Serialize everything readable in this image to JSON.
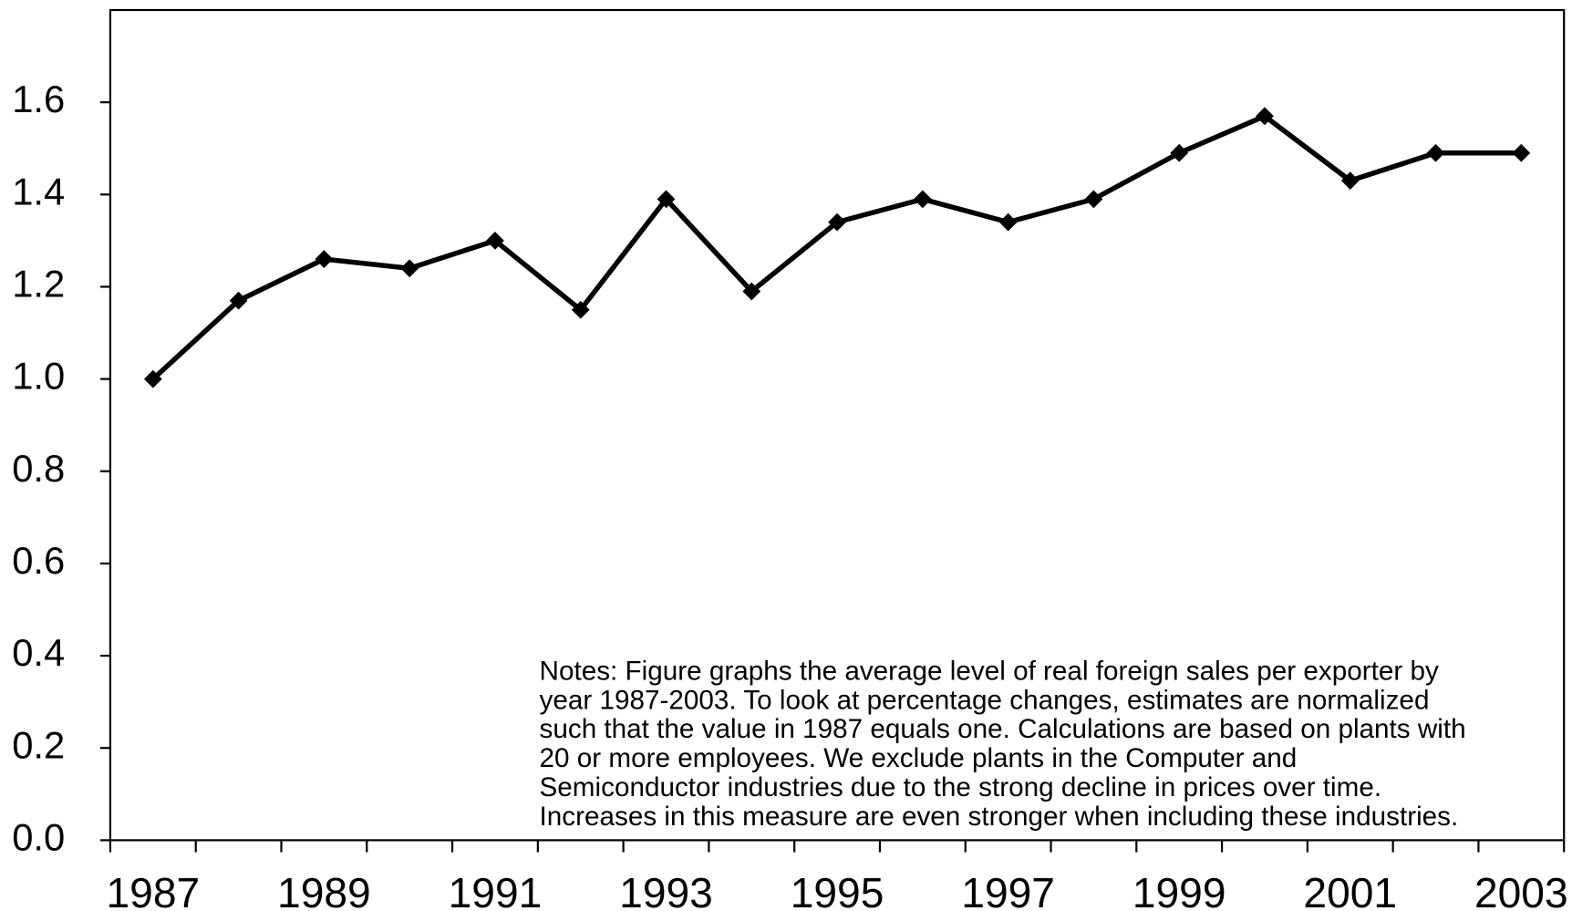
{
  "chart_data": {
    "type": "line",
    "categories": [
      "1987",
      null,
      "1989",
      null,
      "1991",
      null,
      "1993",
      null,
      "1995",
      null,
      "1997",
      null,
      "1999",
      null,
      "2001",
      null,
      "2003"
    ],
    "series": [
      {
        "name": null,
        "color": "#000000",
        "values": [
          1.0,
          1.17,
          1.26,
          1.24,
          1.3,
          1.15,
          1.39,
          1.19,
          1.34,
          1.39,
          1.34,
          1.39,
          1.49,
          1.57,
          1.43,
          1.49,
          1.49
        ]
      }
    ],
    "ylim": [
      0,
      1.8
    ],
    "yticks": [
      {
        "value": 0,
        "label": "0.0"
      },
      0.2,
      0.4,
      0.6,
      0.8,
      {
        "value": 1,
        "label": "1.0"
      },
      1.2,
      1.4,
      1.6
    ],
    "grid": false,
    "annotation": [
      "Notes:  Figure graphs the average level of real foreign sales per exporter by",
      "year 1987-2003.  To look at percentage changes, estimates are normalized",
      "such that the value in 1987 equals one.  Calculations are based on plants with",
      "20 or more employees.  We exclude plants in the Computer and",
      "Semiconductor industries due to the strong decline in prices over time.",
      "Increases in this measure are even stronger when including these industries."
    ]
  }
}
